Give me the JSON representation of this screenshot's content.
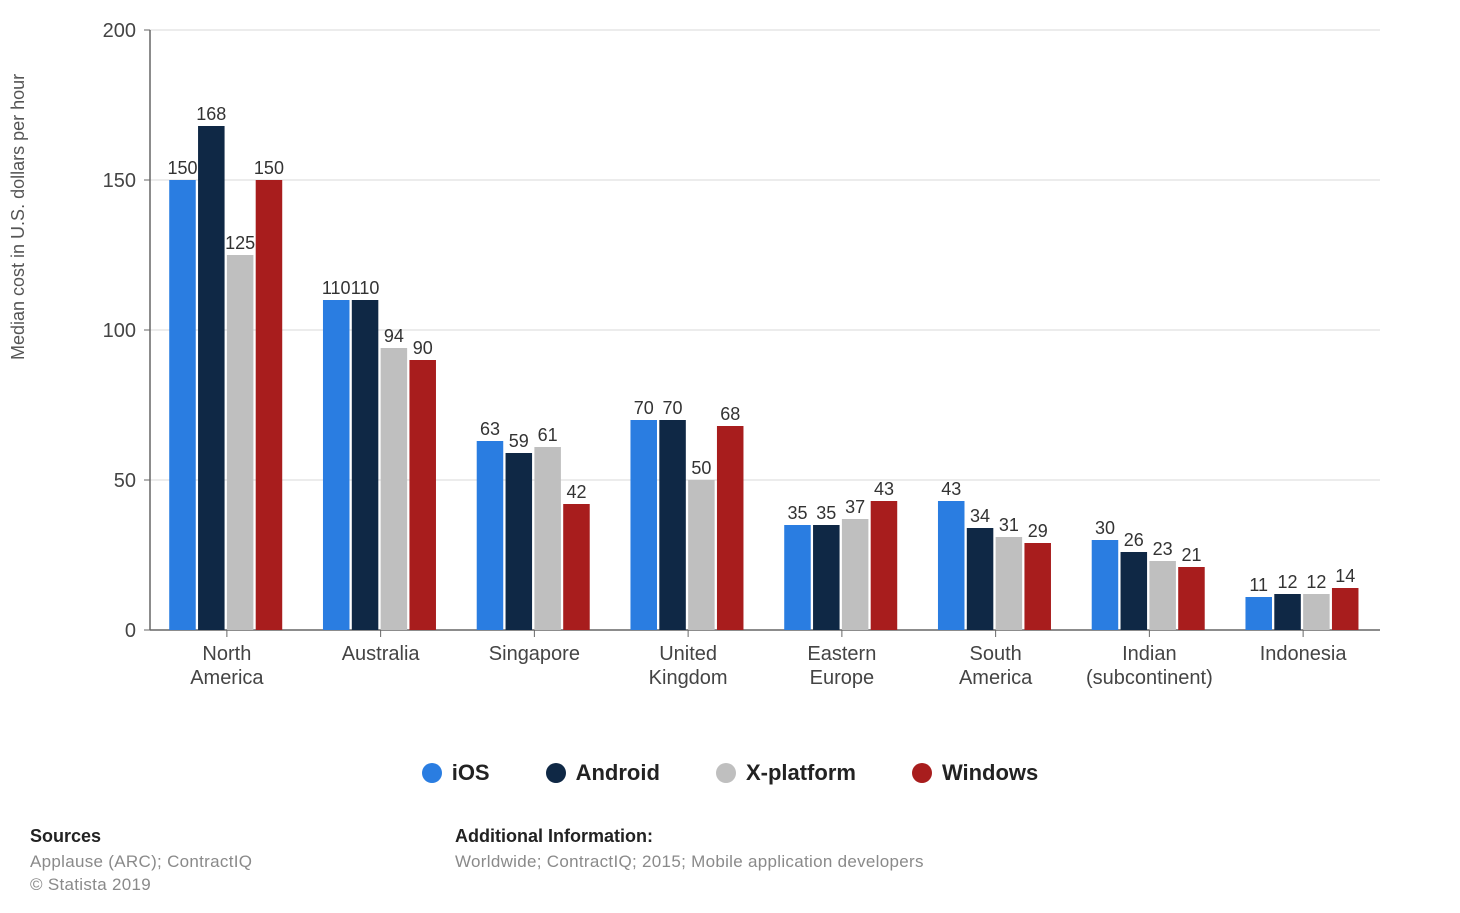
{
  "chart": {
    "type": "bar",
    "ylabel": "Median cost in U.S. dollars per hour",
    "ylim": [
      0,
      200
    ],
    "ytick_step": 50,
    "yticks": [
      0,
      50,
      100,
      150,
      200
    ],
    "background_color": "#ffffff",
    "grid_color": "#d9d9d9",
    "axis_color": "#666666",
    "label_fontsize": 18,
    "tick_fontsize": 20,
    "value_fontsize": 18,
    "bar_cluster_gap": 0.25,
    "bar_width": 0.18,
    "categories": [
      "North America",
      "Australia",
      "Singapore",
      "United Kingdom",
      "Eastern Europe",
      "South America",
      "Indian (subcontinent)",
      "Indonesia"
    ],
    "series": [
      {
        "name": "iOS",
        "color": "#2a7de1",
        "values": [
          150,
          110,
          63,
          70,
          35,
          43,
          30,
          11
        ]
      },
      {
        "name": "Android",
        "color": "#0f2845",
        "values": [
          168,
          110,
          59,
          70,
          35,
          34,
          26,
          12
        ]
      },
      {
        "name": "X-platform",
        "color": "#bfbfbf",
        "values": [
          125,
          94,
          61,
          50,
          37,
          31,
          23,
          12
        ]
      },
      {
        "name": "Windows",
        "color": "#a81d1d",
        "values": [
          150,
          90,
          42,
          68,
          43,
          29,
          21,
          14
        ]
      }
    ]
  },
  "legend": {
    "items": [
      {
        "label": "iOS",
        "color": "#2a7de1"
      },
      {
        "label": "Android",
        "color": "#0f2845"
      },
      {
        "label": "X-platform",
        "color": "#bfbfbf"
      },
      {
        "label": "Windows",
        "color": "#a81d1d"
      }
    ]
  },
  "footer": {
    "sources_heading": "Sources",
    "sources_line": "Applause (ARC); ContractIQ",
    "copyright": "© Statista 2019",
    "addl_heading": "Additional Information:",
    "addl_line": "Worldwide; ContractIQ; 2015; Mobile application developers"
  }
}
